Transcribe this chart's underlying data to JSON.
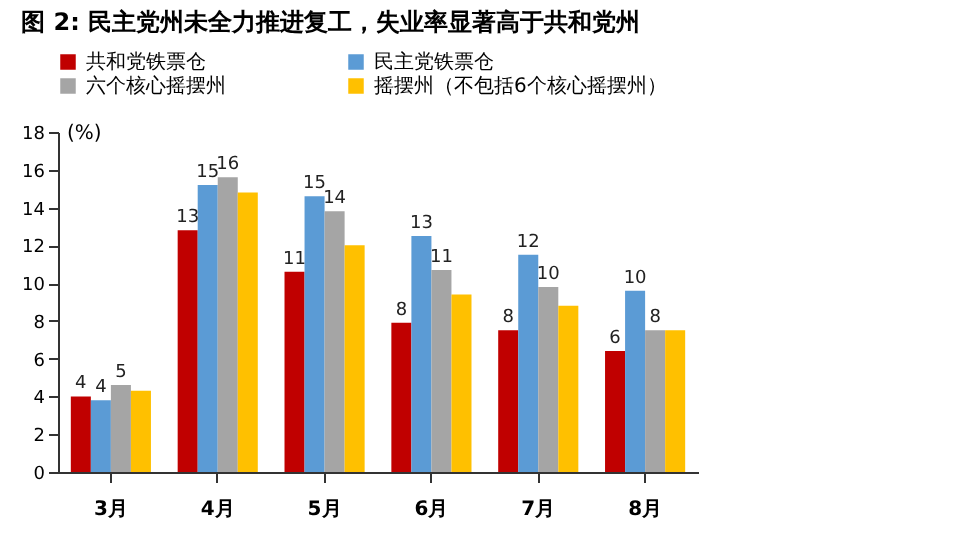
{
  "chart_data": {
    "type": "bar",
    "title": "图 2: 民主党州未全力推进复工，失业率显著高于共和党州",
    "ylabel": "(%)",
    "categories": [
      "3月",
      "4月",
      "5月",
      "6月",
      "7月",
      "8月"
    ],
    "series": [
      {
        "name": "共和党铁票仓",
        "color": "#c00000",
        "values": [
          4.0,
          12.8,
          10.6,
          7.9,
          7.5,
          6.4
        ],
        "value_labels": [
          "4",
          "13",
          "11",
          "8",
          "8",
          "6"
        ]
      },
      {
        "name": "民主党铁票仓",
        "color": "#5b9bd5",
        "values": [
          3.8,
          15.2,
          14.6,
          12.5,
          11.5,
          9.6
        ],
        "value_labels": [
          "4",
          "15",
          "15",
          "13",
          "12",
          "10"
        ]
      },
      {
        "name": "六个核心摇摆州",
        "color": "#a5a5a5",
        "values": [
          4.6,
          15.6,
          13.8,
          10.7,
          9.8,
          7.5
        ],
        "value_labels": [
          "5",
          "16",
          "14",
          "11",
          "10",
          "8"
        ]
      },
      {
        "name": "摇摆州（不包括6个核心摇摆州）",
        "color": "#ffc000",
        "values": [
          4.3,
          14.8,
          12.0,
          9.4,
          8.8,
          7.5
        ]
      }
    ],
    "ylim": [
      0,
      18
    ],
    "yticks": [
      0,
      2,
      4,
      6,
      8,
      10,
      12,
      14,
      16,
      18
    ],
    "grid": false,
    "legend": "top"
  }
}
